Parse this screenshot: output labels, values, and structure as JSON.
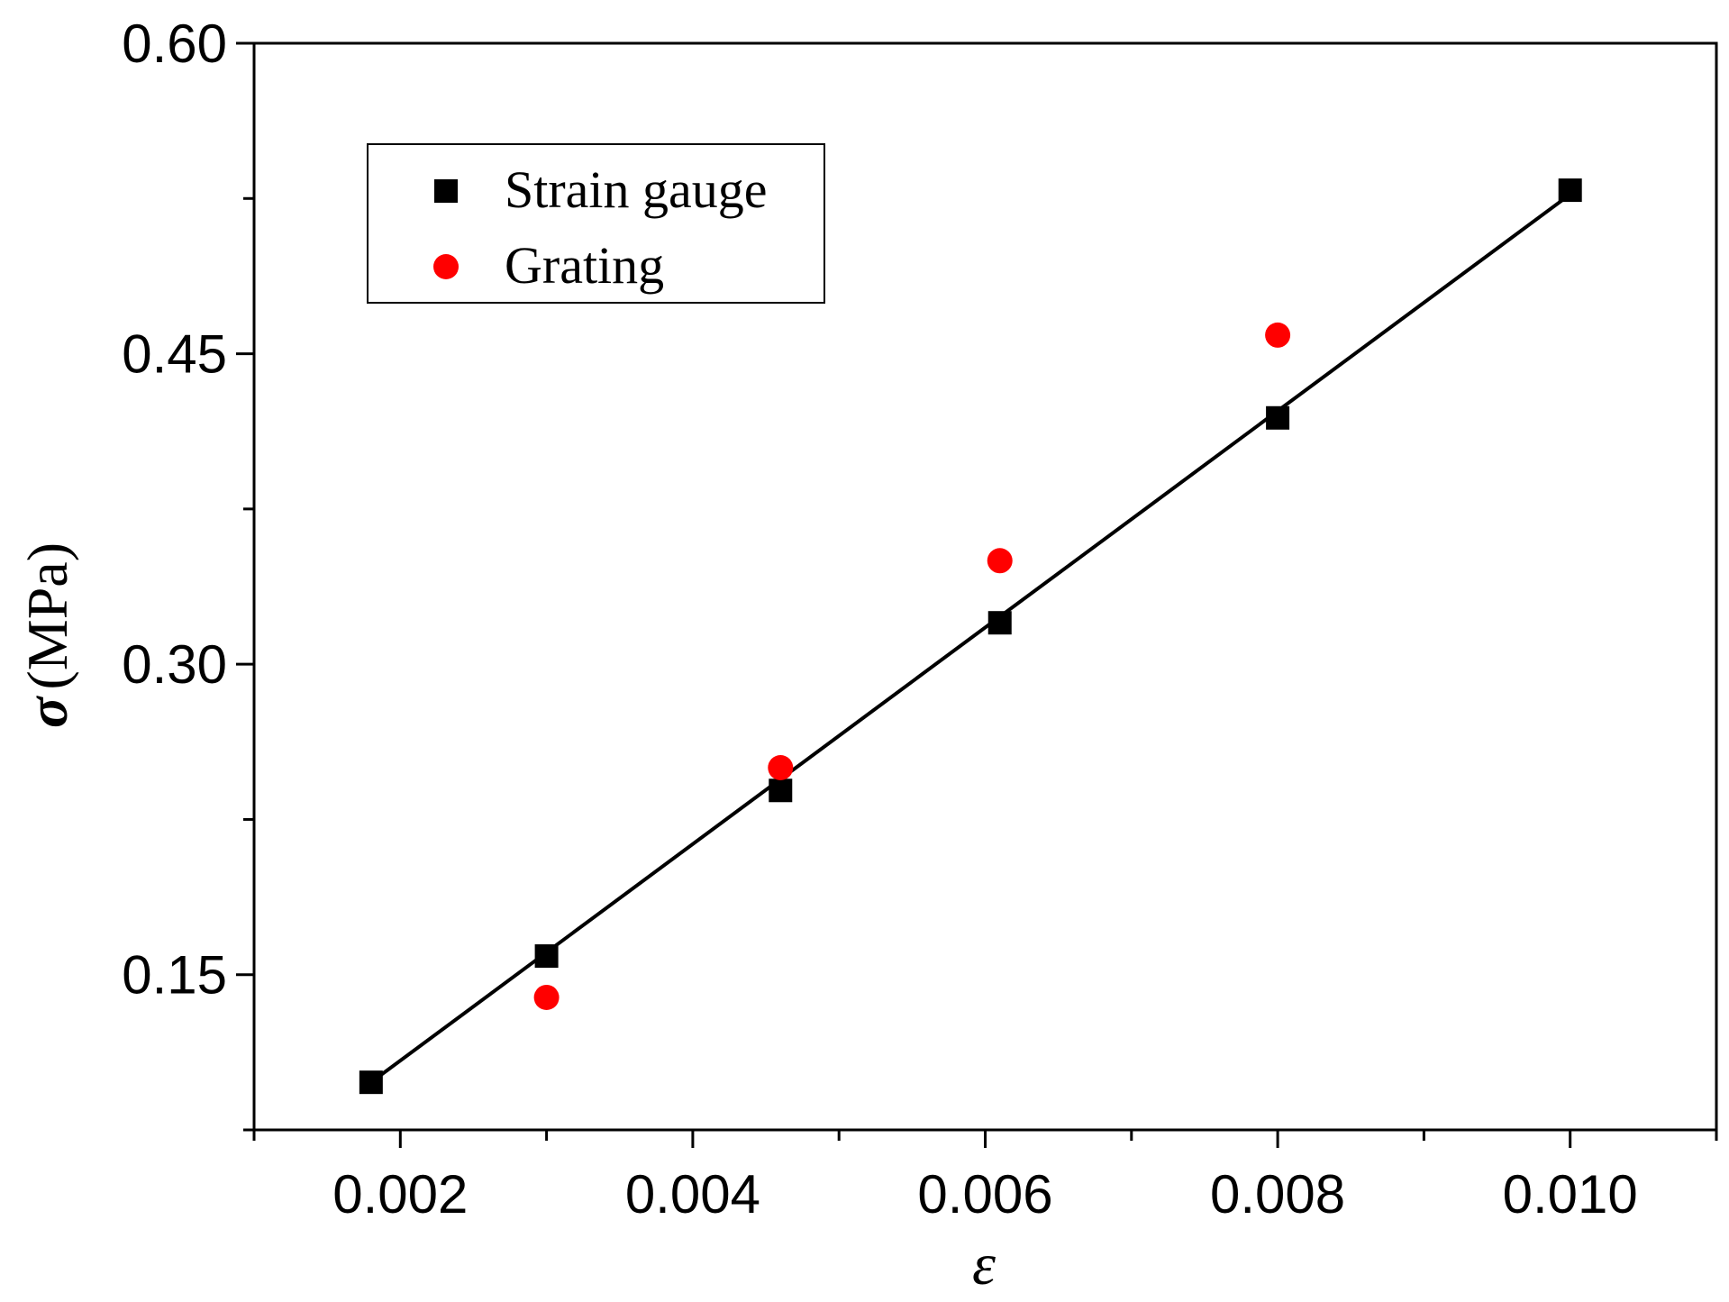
{
  "chart_data": {
    "type": "scatter",
    "title": "",
    "xlabel": "ε",
    "ylabel_symbol": "σ",
    "ylabel_unit": "(MPa)",
    "xlim": [
      0.001,
      0.011
    ],
    "ylim": [
      0.075,
      0.6
    ],
    "x_ticks": [
      0.002,
      0.004,
      0.006,
      0.008,
      0.01
    ],
    "x_tick_labels": [
      "0.002",
      "0.004",
      "0.006",
      "0.008",
      "0.010"
    ],
    "x_minor_ticks": [
      0.001,
      0.003,
      0.005,
      0.007,
      0.009,
      0.011
    ],
    "y_ticks": [
      0.15,
      0.3,
      0.45,
      0.6
    ],
    "y_tick_labels": [
      "0.15",
      "0.30",
      "0.45",
      "0.60"
    ],
    "y_minor_ticks": [
      0.075,
      0.225,
      0.375,
      0.525
    ],
    "grid": false,
    "legend_position": "top-left",
    "series": [
      {
        "name": "Strain gauge",
        "marker": "square",
        "color": "#000000",
        "x": [
          0.0018,
          0.003,
          0.0046,
          0.0061,
          0.008,
          0.01
        ],
        "y": [
          0.098,
          0.159,
          0.239,
          0.32,
          0.419,
          0.529
        ]
      },
      {
        "name": "Grating",
        "marker": "circle",
        "color": "#ff0000",
        "x": [
          0.003,
          0.0046,
          0.0061,
          0.008
        ],
        "y": [
          0.139,
          0.25,
          0.35,
          0.459
        ]
      }
    ],
    "fit_line": {
      "color": "#000000",
      "x": [
        0.0018,
        0.01
      ],
      "y": [
        0.098,
        0.527
      ]
    }
  }
}
